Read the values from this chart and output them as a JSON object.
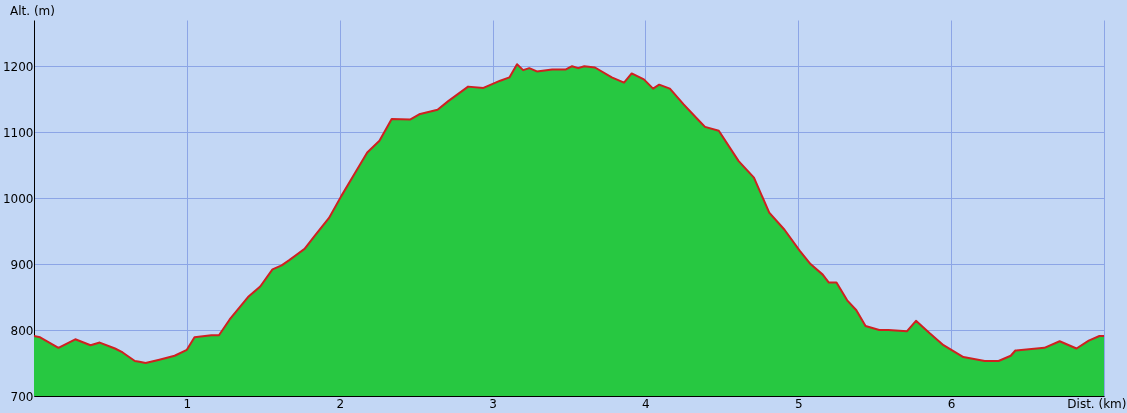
{
  "chart_data": {
    "type": "area",
    "xlabel": "Dist. (km)",
    "ylabel": "Alt. (m)",
    "x": [
      0,
      0.04,
      0.16,
      0.27,
      0.37,
      0.43,
      0.53,
      0.58,
      0.66,
      0.69,
      0.73,
      0.82,
      0.92,
      1.0,
      1.05,
      1.16,
      1.21,
      1.28,
      1.4,
      1.48,
      1.56,
      1.62,
      1.67,
      1.77,
      1.84,
      1.93,
      2.01,
      2.1,
      2.18,
      2.26,
      2.34,
      2.46,
      2.52,
      2.64,
      2.71,
      2.84,
      2.94,
      3.05,
      3.11,
      3.16,
      3.2,
      3.24,
      3.29,
      3.39,
      3.48,
      3.52,
      3.56,
      3.6,
      3.67,
      3.78,
      3.86,
      3.91,
      3.99,
      4.05,
      4.09,
      4.16,
      4.25,
      4.34,
      4.39,
      4.48,
      4.61,
      4.71,
      4.81,
      4.91,
      5.01,
      5.08,
      5.16,
      5.2,
      5.25,
      5.32,
      5.38,
      5.44,
      5.53,
      5.59,
      5.71,
      5.77,
      5.86,
      5.95,
      6.08,
      6.22,
      6.31,
      6.39,
      6.42,
      6.61,
      6.71,
      6.82,
      6.9,
      6.97,
      7.0
    ],
    "series": [
      {
        "type": "area",
        "color": "#27c841",
        "values": [
          791,
          789,
          773,
          786,
          777,
          781,
          772,
          766,
          753,
          752,
          750,
          755,
          761,
          770,
          789,
          792,
          792,
          816,
          850,
          866,
          892,
          898,
          906,
          923,
          944,
          970,
          1003,
          1038,
          1069,
          1087,
          1120,
          1119,
          1127,
          1134,
          1147,
          1169,
          1167,
          1178,
          1183,
          1203,
          1194,
          1197,
          1192,
          1195,
          1195,
          1200,
          1197,
          1200,
          1198,
          1183,
          1175,
          1189,
          1180,
          1166,
          1172,
          1166,
          1142,
          1120,
          1108,
          1102,
          1056,
          1031,
          978,
          952,
          920,
          900,
          884,
          872,
          872,
          845,
          830,
          806,
          800,
          800,
          798,
          814,
          795,
          777,
          759,
          753,
          753,
          761,
          769,
          773,
          783,
          772,
          784,
          791,
          791
        ]
      },
      {
        "type": "line",
        "color": "#d02020",
        "values": [
          791,
          789,
          773,
          786,
          777,
          781,
          772,
          766,
          753,
          752,
          750,
          755,
          761,
          770,
          789,
          792,
          792,
          816,
          850,
          866,
          892,
          898,
          906,
          923,
          944,
          970,
          1003,
          1038,
          1069,
          1087,
          1120,
          1119,
          1127,
          1134,
          1147,
          1169,
          1167,
          1178,
          1183,
          1203,
          1194,
          1197,
          1192,
          1195,
          1195,
          1200,
          1197,
          1200,
          1198,
          1183,
          1175,
          1189,
          1180,
          1166,
          1172,
          1166,
          1142,
          1120,
          1108,
          1102,
          1056,
          1031,
          978,
          952,
          920,
          900,
          884,
          872,
          872,
          845,
          830,
          806,
          800,
          800,
          798,
          814,
          795,
          777,
          759,
          753,
          753,
          761,
          769,
          773,
          783,
          772,
          784,
          791,
          791
        ]
      }
    ],
    "xlim": [
      0,
      7
    ],
    "xticks": [
      1,
      2,
      3,
      4,
      5,
      6,
      {
        "value": 7,
        "label": null
      }
    ],
    "ylim": [
      700,
      1270
    ],
    "yticks": [
      700,
      800,
      900,
      1000,
      1100,
      1200
    ],
    "grid": true
  }
}
